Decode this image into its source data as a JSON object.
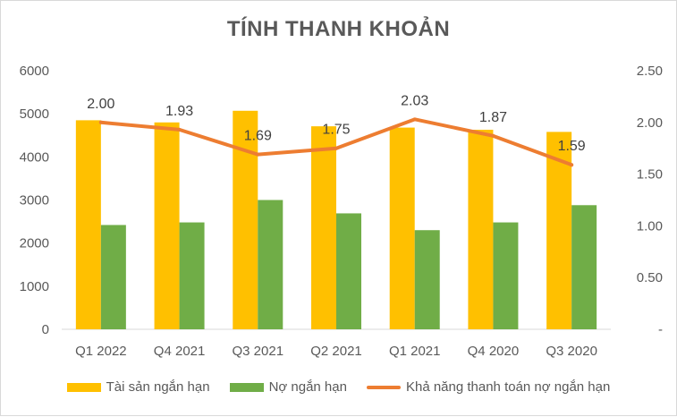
{
  "chart_data": {
    "type": "bar",
    "title": "TÍNH THANH KHOẢN",
    "categories": [
      "Q1 2022",
      "Q4 2021",
      "Q3 2021",
      "Q2 2021",
      "Q1 2021",
      "Q4 2020",
      "Q3 2020"
    ],
    "series": [
      {
        "name": "Tài sản ngắn hạn",
        "type": "bar",
        "axis": "left",
        "color": "#FFC000",
        "values": [
          4850,
          4800,
          5070,
          4710,
          4680,
          4630,
          4580
        ]
      },
      {
        "name": "Nợ ngắn hạn",
        "type": "bar",
        "axis": "left",
        "color": "#70AD47",
        "values": [
          2420,
          2480,
          3000,
          2690,
          2300,
          2480,
          2880
        ]
      },
      {
        "name": "Khả năng thanh toán nợ ngắn hạn",
        "type": "line",
        "axis": "right",
        "color": "#ED7D31",
        "values": [
          2.0,
          1.93,
          1.69,
          1.75,
          2.03,
          1.87,
          1.59
        ],
        "data_labels": [
          "2.00",
          "1.93",
          "1.69",
          "1.75",
          "2.03",
          "1.87",
          "1.59"
        ]
      }
    ],
    "y_left": {
      "ylim": [
        0,
        6000
      ],
      "ticks": [
        0,
        1000,
        2000,
        3000,
        4000,
        5000,
        6000
      ],
      "tick_labels": [
        "0",
        "1000",
        "2000",
        "3000",
        "4000",
        "5000",
        "6000"
      ]
    },
    "y_right": {
      "ylim": [
        0,
        2.5
      ],
      "ticks": [
        0,
        0.5,
        1.0,
        1.5,
        2.0,
        2.5
      ],
      "tick_labels": [
        "-",
        "0.50",
        "1.00",
        "1.50",
        "2.00",
        "2.50"
      ]
    },
    "grid": false,
    "legend_position": "bottom"
  }
}
